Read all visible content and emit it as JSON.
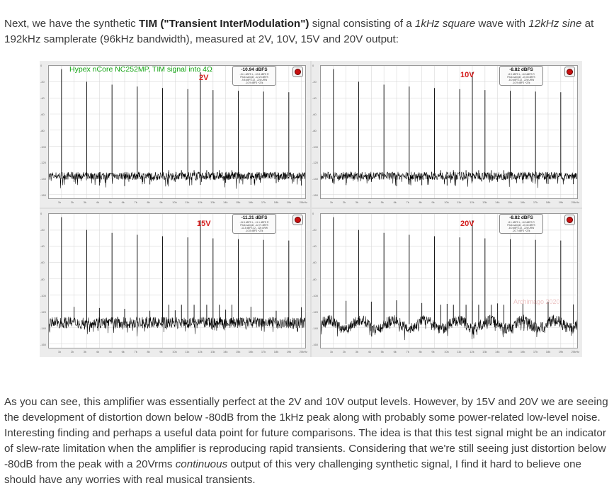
{
  "intro": {
    "p1": "Next, we have the synthetic ",
    "bold": "TIM (\"Transient InterModulation\")",
    "p2": " signal consisting of a ",
    "i1": "1kHz square",
    "p3": " wave with ",
    "i2": "12kHz sine",
    "p4": " at 192kHz samplerate (96kHz bandwidth), measured at 2V, 10V, 15V and 20V output:"
  },
  "figure": {
    "caption": "Hypex nCore NC252MP, TIM signal into 4Ω",
    "watermark": "Archimago 2020",
    "y_ticks": [
      "0",
      "-20",
      "-40",
      "-60",
      "-80",
      "-100",
      "-120",
      "-140",
      "-160"
    ],
    "x_ticks": [
      "1k",
      "2k",
      "3k",
      "4k",
      "5k",
      "6k",
      "7k",
      "8k",
      "9k",
      "10k",
      "11k",
      "12k",
      "13k",
      "14k",
      "15k",
      "16k",
      "17k",
      "18k",
      "19k",
      "20kHz"
    ],
    "panels": [
      {
        "voltage": "2V",
        "readout": "-10.94 dBFS",
        "lines": [
          "-11.1 dBFS L, -10.8 dBFS R",
          "Peak sample: -12.23 dBFS",
          "-9.8 dBFS 22 - 22k URW",
          "-10.9 dBFS +22k"
        ],
        "noise_level": -137,
        "spur_level": -150
      },
      {
        "voltage": "10V",
        "readout": "-8.82 dBFS",
        "lines": [
          "-8.9 dBFS L, -8.8 dBFS R",
          "Peak sample: -10.33 dBFS",
          "-8.0 dBFS 22 - 22k URW",
          "-10.9 dBFS +22k"
        ],
        "noise_level": -137,
        "spur_level": -150
      },
      {
        "voltage": "15V",
        "readout": "-11.31 dBFS",
        "lines": [
          "-11.5 dBFS L, -11.1 dBFS R",
          "Peak sample: -12.71 dBFS",
          "-11.3 dBFS 22 - 22k URW",
          "-10.8 dBFS +22k"
        ],
        "noise_level": -134,
        "spur_level": -120
      },
      {
        "voltage": "20V",
        "readout": "-8.82 dBFS",
        "lines": [
          "-8.1 dBFS L, -8.8 dBFS R",
          "Peak sample: -10.44 dBFS",
          "-8.0 dBFS 22 - 22k URW",
          "-20.7 dBFS +22k"
        ],
        "noise_level": -136,
        "spur_level": -112
      }
    ]
  },
  "body": {
    "p1": "As you can see, this amplifier was essentially perfect at the 2V and 10V output levels. However, by 15V and 20V we are seeing the development of distortion down below -80dB from the 1kHz peak along with probably some power-related low-level noise. Interesting finding and perhaps a useful data point for future comparisons. The idea is that this test signal might be an indicator of slew-rate limitation when the amplifier is reproducing rapid transients. Considering that we're still seeing just distortion below -80dB from the peak with a 20Vrms ",
    "i1": "continuous",
    "p2": " output of this very challenging synthetic signal, I find it hard to believe one should have any worries with real musical transients."
  },
  "colors": {
    "trace": "#000000",
    "grid": "#d9d9d9",
    "voltage": "#d41e1e",
    "caption": "#13a313"
  }
}
